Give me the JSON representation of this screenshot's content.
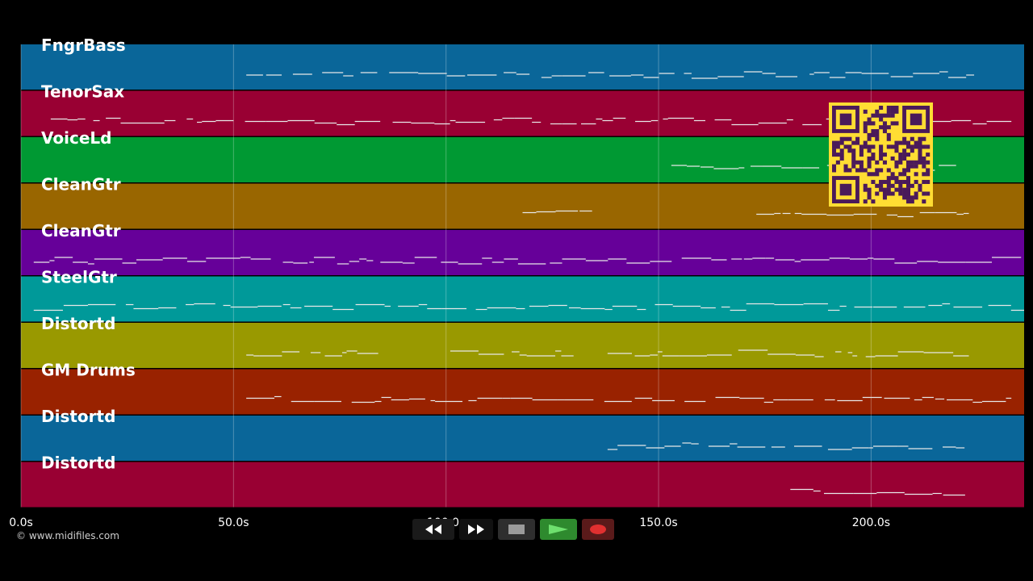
{
  "tracks": [
    {
      "name": "FngrBass",
      "color": "#0a6699"
    },
    {
      "name": "TenorSax",
      "color": "#990033"
    },
    {
      "name": "VoiceLd",
      "color": "#009933"
    },
    {
      "name": "CleanGtr",
      "color": "#996600"
    },
    {
      "name": "CleanGtr",
      "color": "#660099"
    },
    {
      "name": "SteelGtr",
      "color": "#009999"
    },
    {
      "name": "Distortd",
      "color": "#999900"
    },
    {
      "name": "GM Drums",
      "color": "#992200"
    },
    {
      "name": "Distortd",
      "color": "#0a6699"
    },
    {
      "name": "Distortd",
      "color": "#990033"
    }
  ],
  "timeline": {
    "max_seconds": 236,
    "ticks": [
      {
        "value": 0,
        "label": "0.0s"
      },
      {
        "value": 50,
        "label": "50.0s"
      },
      {
        "value": 100,
        "label": "100.0s"
      },
      {
        "value": 150,
        "label": "150.0s"
      },
      {
        "value": 200,
        "label": "200.0s"
      }
    ]
  },
  "credit": "© www.midifiles.com",
  "transport": {
    "rewind": "rewind-icon",
    "forward": "fast-forward-icon",
    "stop": "stop-icon",
    "play": "play-icon",
    "record": "record-icon"
  },
  "qr_overlay": {
    "color": "#ffdd33",
    "dark": "#4a1a5a"
  }
}
